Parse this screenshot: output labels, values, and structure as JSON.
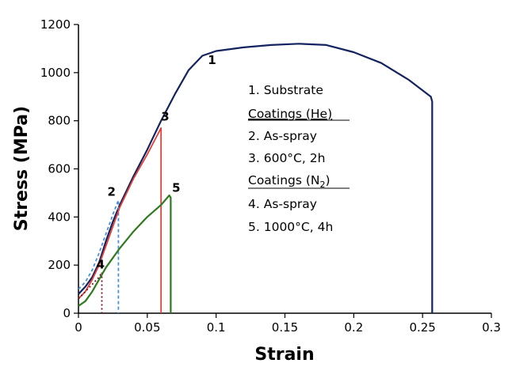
{
  "chart_data": {
    "type": "line",
    "xlabel": "Strain",
    "ylabel": "Stress (MPa)",
    "xlim": [
      0,
      0.3
    ],
    "ylim": [
      0,
      1200
    ],
    "x_ticks": [
      0,
      0.05,
      0.1,
      0.15,
      0.2,
      0.25,
      0.3
    ],
    "x_tick_labels": [
      "0",
      "0.05",
      "0.1",
      "0.15",
      "0.2",
      "0.25",
      "0.3"
    ],
    "y_ticks": [
      0,
      200,
      400,
      600,
      800,
      1000,
      1200
    ],
    "y_tick_labels": [
      "0",
      "200",
      "400",
      "600",
      "800",
      "1000",
      "1200"
    ],
    "grid": false,
    "legend_placement": "center-right",
    "legend": {
      "line1": "1. Substrate",
      "heading_he": "Coatings (He)",
      "line2": "2. As-spray",
      "line3": "3. 600°C, 2h",
      "heading_n2_prefix": "Coatings (N",
      "heading_n2_sub": "2",
      "heading_n2_suffix": ")",
      "line4": "4. As-spray",
      "line5": "5. 1000°C, 4h"
    },
    "series": [
      {
        "name": "1. Substrate",
        "label": "1",
        "color": "#14235f",
        "dash": "",
        "x": [
          0,
          0.005,
          0.01,
          0.015,
          0.02,
          0.025,
          0.03,
          0.04,
          0.05,
          0.06,
          0.07,
          0.08,
          0.09,
          0.1,
          0.12,
          0.14,
          0.16,
          0.18,
          0.2,
          0.22,
          0.24,
          0.256,
          0.257,
          0.257
        ],
        "y": [
          80,
          110,
          150,
          210,
          300,
          380,
          450,
          570,
          680,
          800,
          910,
          1010,
          1070,
          1090,
          1105,
          1115,
          1120,
          1115,
          1085,
          1040,
          970,
          900,
          880,
          0
        ]
      },
      {
        "name": "2. As-spray",
        "label": "2",
        "color": "#4a90d9",
        "dash": "4 3",
        "x": [
          0,
          0.005,
          0.01,
          0.015,
          0.02,
          0.025,
          0.029,
          0.029
        ],
        "y": [
          100,
          130,
          180,
          250,
          330,
          410,
          470,
          0
        ]
      },
      {
        "name": "3. 600°C, 2h",
        "label": "3",
        "color": "#e0403a",
        "dash": "",
        "x": [
          0,
          0.005,
          0.01,
          0.015,
          0.02,
          0.025,
          0.03,
          0.04,
          0.05,
          0.06,
          0.06
        ],
        "y": [
          60,
          90,
          140,
          200,
          280,
          360,
          440,
          560,
          660,
          770,
          0
        ]
      },
      {
        "name": "4. As-spray",
        "label": "4",
        "color": "#7a1020",
        "dash": "2 3",
        "x": [
          0,
          0.005,
          0.01,
          0.015,
          0.017,
          0.017
        ],
        "y": [
          60,
          90,
          120,
          150,
          170,
          0
        ]
      },
      {
        "name": "5. 1000°C, 4h",
        "label": "5",
        "color": "#2f7a1f",
        "dash": "",
        "x": [
          0,
          0.005,
          0.01,
          0.015,
          0.02,
          0.03,
          0.04,
          0.05,
          0.06,
          0.066,
          0.067,
          0.067
        ],
        "y": [
          30,
          50,
          90,
          140,
          190,
          270,
          340,
          400,
          450,
          490,
          480,
          0
        ]
      }
    ],
    "curve_labels": [
      {
        "text": "1",
        "x": 0.097,
        "y": 1035
      },
      {
        "text": "2",
        "x": 0.024,
        "y": 488
      },
      {
        "text": "3",
        "x": 0.063,
        "y": 800
      },
      {
        "text": "4",
        "x": 0.016,
        "y": 185
      },
      {
        "text": "5",
        "x": 0.071,
        "y": 505
      }
    ]
  }
}
